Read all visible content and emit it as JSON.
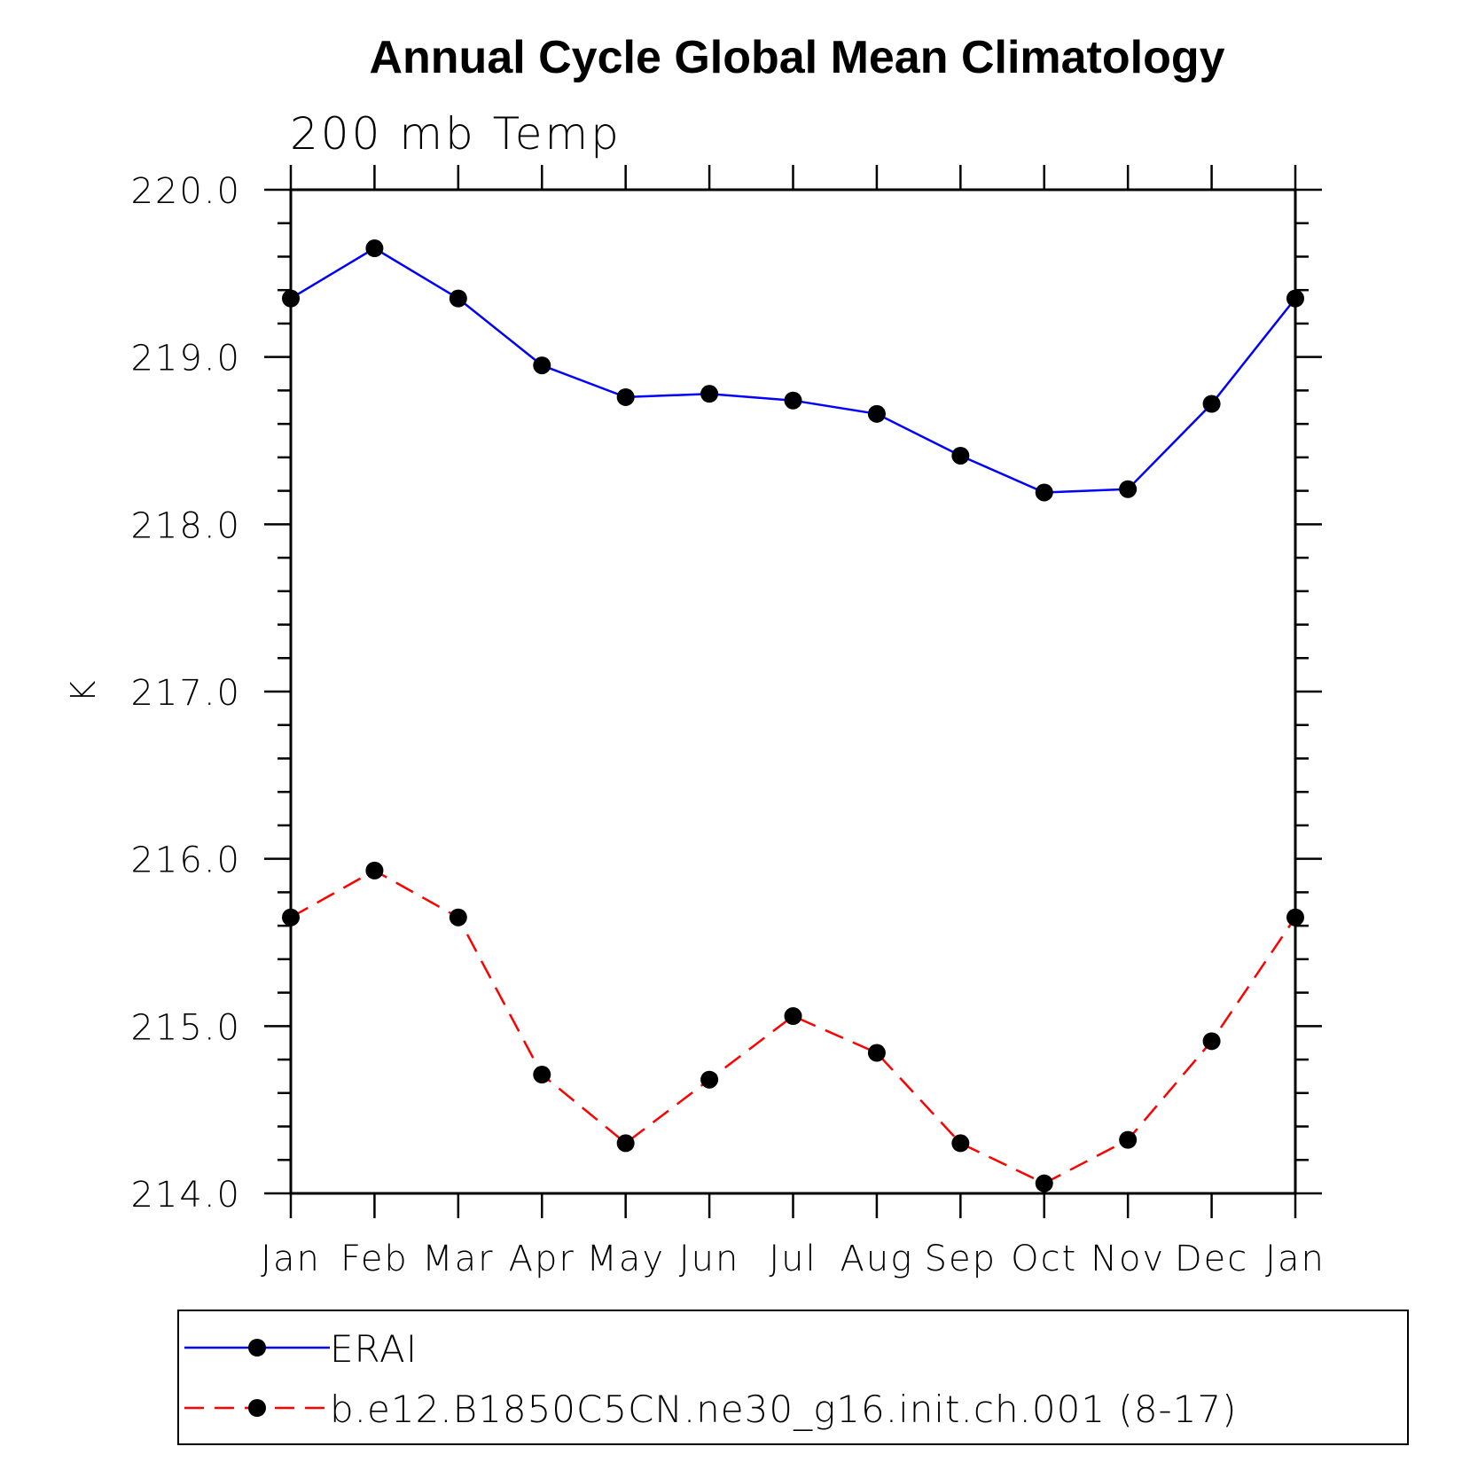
{
  "chart_data": {
    "type": "line",
    "title": "Annual Cycle Global Mean Climatology",
    "subtitle": "200 mb Temp",
    "xlabel": "",
    "ylabel": "K",
    "categories": [
      "Jan",
      "Feb",
      "Mar",
      "Apr",
      "May",
      "Jun",
      "Jul",
      "Aug",
      "Sep",
      "Oct",
      "Nov",
      "Dec",
      "Jan"
    ],
    "ylim": [
      214.0,
      220.0
    ],
    "yticks": [
      214.0,
      215.0,
      216.0,
      217.0,
      218.0,
      219.0,
      220.0
    ],
    "ytick_labels": [
      "214.0",
      "215.0",
      "216.0",
      "217.0",
      "218.0",
      "219.0",
      "220.0"
    ],
    "grid": false,
    "legend_position": "bottom",
    "series": [
      {
        "name": "ERAI",
        "color": "#0000ff",
        "line_style": "solid",
        "marker": "filled-circle",
        "values": [
          219.35,
          219.65,
          219.35,
          218.95,
          218.76,
          218.78,
          218.74,
          218.66,
          218.41,
          218.19,
          218.21,
          218.72,
          219.35
        ]
      },
      {
        "name": "b.e12.B1850C5CN.ne30_g16.init.ch.001 (8-17)",
        "color": "#ff0000",
        "line_style": "dashed",
        "marker": "filled-circle",
        "values": [
          215.65,
          215.93,
          215.65,
          214.71,
          214.3,
          214.68,
          215.06,
          214.84,
          214.3,
          214.06,
          214.32,
          214.91,
          215.65
        ]
      }
    ]
  }
}
